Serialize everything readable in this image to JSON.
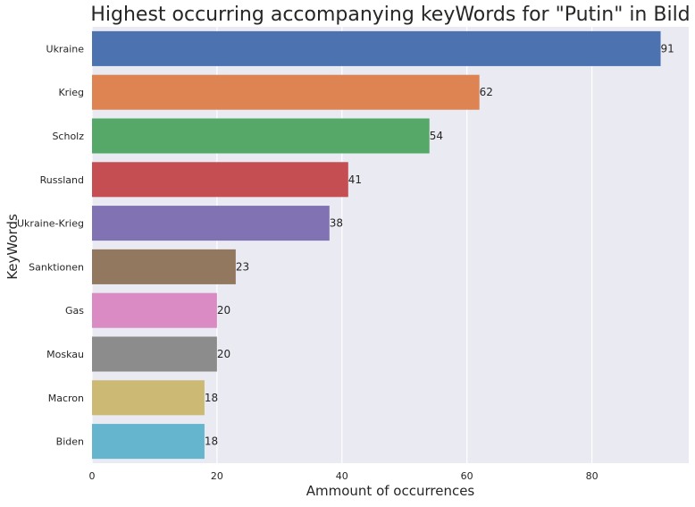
{
  "chart_data": {
    "type": "bar",
    "orientation": "horizontal",
    "title": "Highest occurring accompanying keyWords for \"Putin\" in Bild",
    "xlabel": "Ammount of occurrences",
    "ylabel": "KeyWords",
    "categories": [
      "Ukraine",
      "Krieg",
      "Scholz",
      "Russland",
      "Ukraine-Krieg",
      "Sanktionen",
      "Gas",
      "Moskau",
      "Macron",
      "Biden"
    ],
    "values": [
      91,
      62,
      54,
      41,
      38,
      23,
      20,
      20,
      18,
      18
    ],
    "data_labels": [
      "91",
      "62",
      "54",
      "41",
      "38",
      "23",
      "20",
      "20",
      "18",
      "18"
    ],
    "colors": [
      "#4c72b0",
      "#dd8452",
      "#55a868",
      "#c44e52",
      "#8172b3",
      "#937860",
      "#da8bc3",
      "#8c8c8c",
      "#ccb974",
      "#64b5cd"
    ],
    "xlim": [
      0,
      95.5
    ],
    "xticks": [
      0,
      20,
      40,
      60,
      80
    ],
    "xtick_labels": [
      "0",
      "20",
      "40",
      "60",
      "80"
    ],
    "grid": true,
    "background_color": "#eaeaf2",
    "grid_color": "#ffffff"
  }
}
